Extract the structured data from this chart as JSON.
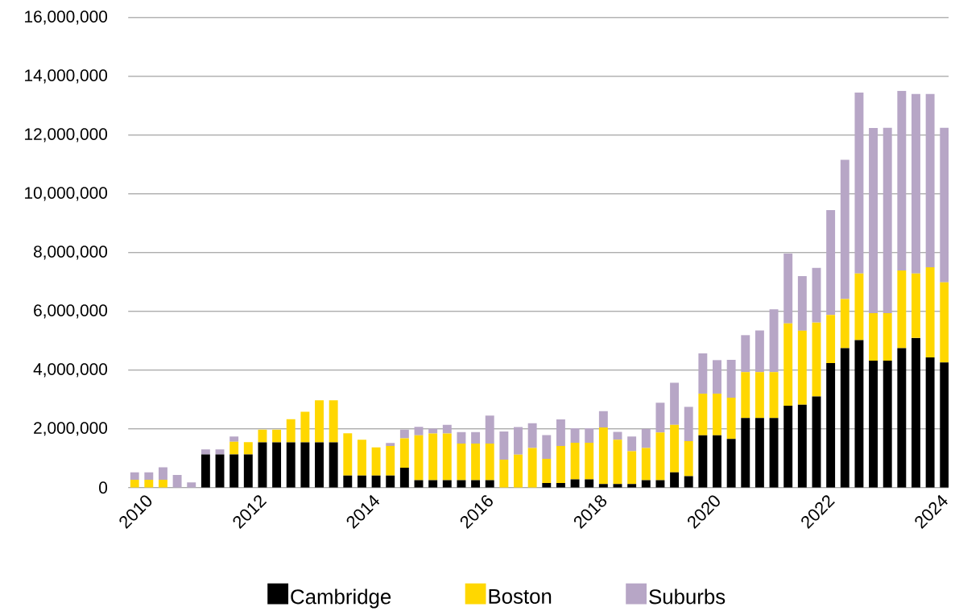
{
  "chart_data": {
    "type": "bar",
    "stacked": true,
    "grid": "y",
    "legend": "bottom",
    "categories": [
      "2010",
      null,
      null,
      null,
      null,
      null,
      null,
      null,
      "2012",
      null,
      null,
      null,
      null,
      null,
      null,
      null,
      "2014",
      null,
      null,
      null,
      null,
      null,
      null,
      null,
      "2016",
      null,
      null,
      null,
      null,
      null,
      null,
      null,
      "2018",
      null,
      null,
      null,
      null,
      null,
      null,
      null,
      "2020",
      null,
      null,
      null,
      null,
      null,
      null,
      null,
      "2022",
      null,
      null,
      null,
      null,
      null,
      null,
      null,
      "2024",
      null
    ],
    "ylim": [
      0,
      16000000
    ],
    "yticks": [
      {
        "value": 0,
        "label": "0"
      },
      {
        "value": 2000000,
        "label": "2,000,000"
      },
      {
        "value": 4000000,
        "label": "4,000,000"
      },
      {
        "value": 6000000,
        "label": "6,000,000"
      },
      {
        "value": 8000000,
        "label": "8,000,000"
      },
      {
        "value": 10000000,
        "label": "10,000,000"
      },
      {
        "value": 12000000,
        "label": "12,000,000"
      },
      {
        "value": 14000000,
        "label": "14,000,000"
      },
      {
        "value": 16000000,
        "label": "16,000,000"
      }
    ],
    "series": [
      {
        "name": "Cambridge",
        "color": "#000000",
        "values": [
          0,
          0,
          0,
          0,
          0,
          1130000,
          1130000,
          1130000,
          1130000,
          1540000,
          1540000,
          1540000,
          1540000,
          1540000,
          1540000,
          410000,
          410000,
          410000,
          410000,
          680000,
          250000,
          250000,
          250000,
          250000,
          250000,
          250000,
          0,
          0,
          0,
          160000,
          160000,
          280000,
          280000,
          120000,
          120000,
          120000,
          250000,
          250000,
          520000,
          390000,
          1780000,
          1780000,
          1660000,
          2370000,
          2370000,
          2370000,
          2790000,
          2820000,
          3100000,
          4240000,
          4750000,
          5020000,
          4320000,
          4320000,
          4750000,
          5100000,
          4430000,
          4260000
        ]
      },
      {
        "name": "Boston",
        "color": "#ffd700",
        "values": [
          270000,
          270000,
          270000,
          0,
          0,
          0,
          0,
          430000,
          420000,
          430000,
          430000,
          790000,
          1040000,
          1430000,
          1430000,
          1440000,
          1220000,
          960000,
          1010000,
          1000000,
          1530000,
          1590000,
          1590000,
          1250000,
          1250000,
          1250000,
          950000,
          1120000,
          1350000,
          820000,
          1260000,
          1250000,
          1250000,
          1930000,
          1510000,
          1120000,
          1100000,
          1630000,
          1620000,
          1190000,
          1420000,
          1420000,
          1400000,
          1560000,
          1560000,
          1560000,
          2800000,
          2520000,
          2520000,
          1640000,
          1670000,
          2270000,
          1620000,
          1620000,
          2640000,
          2190000,
          3070000,
          2730000
        ]
      },
      {
        "name": "Suburbs",
        "color": "#b7a6c6",
        "values": [
          250000,
          250000,
          420000,
          430000,
          180000,
          170000,
          170000,
          180000,
          0,
          0,
          0,
          0,
          0,
          0,
          0,
          0,
          0,
          0,
          100000,
          290000,
          290000,
          170000,
          300000,
          390000,
          390000,
          950000,
          960000,
          940000,
          840000,
          810000,
          900000,
          490000,
          490000,
          550000,
          270000,
          500000,
          650000,
          1010000,
          1430000,
          1170000,
          1370000,
          1140000,
          1290000,
          1260000,
          1420000,
          2140000,
          2380000,
          1860000,
          1860000,
          3570000,
          4740000,
          6160000,
          6300000,
          6310000,
          6120000,
          6110000,
          5900000,
          5260000
        ]
      }
    ]
  }
}
